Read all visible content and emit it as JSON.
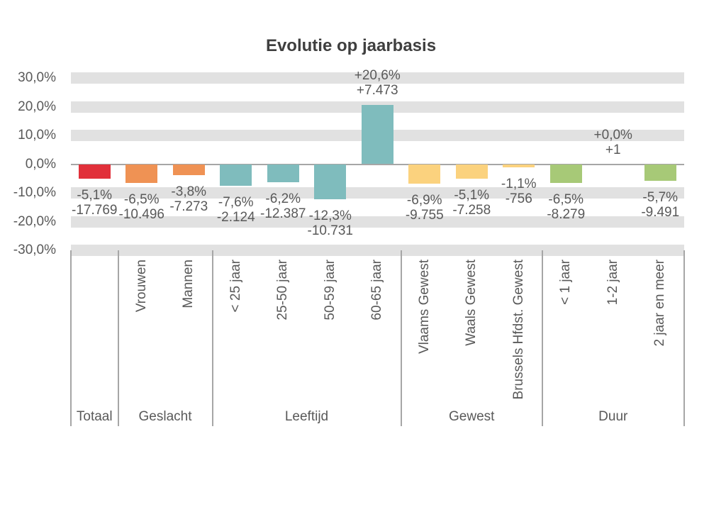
{
  "title": "Evolutie op jaarbasis",
  "chart_data": {
    "type": "bar",
    "title": "Evolutie op jaarbasis",
    "ylim": [
      -30,
      30
    ],
    "grid": "horizontal thick gray bands every 10%, no band at 0",
    "legend": "none",
    "y_ticks": [
      {
        "value": 30,
        "label": "30,0%"
      },
      {
        "value": 20,
        "label": "20,0%"
      },
      {
        "value": 10,
        "label": "10,0%"
      },
      {
        "value": 0,
        "label": "0,0%"
      },
      {
        "value": -10,
        "label": "-10,0%"
      },
      {
        "value": -20,
        "label": "-20,0%"
      },
      {
        "value": -30,
        "label": "-30,0%"
      }
    ],
    "categories": [
      {
        "label": "",
        "group": "Totaal",
        "value_pct": -5.1,
        "pct_label": "-5,1%",
        "abs_label": "-17.769",
        "color": "#e1303a"
      },
      {
        "label": "Vrouwen",
        "group": "Geslacht",
        "value_pct": -6.5,
        "pct_label": "-6,5%",
        "abs_label": "-10.496",
        "color": "#ef9254"
      },
      {
        "label": "Mannen",
        "group": "Geslacht",
        "value_pct": -3.8,
        "pct_label": "-3,8%",
        "abs_label": "-7.273",
        "color": "#ef9254"
      },
      {
        "label": "< 25 jaar",
        "group": "Leeftijd",
        "value_pct": -7.6,
        "pct_label": "-7,6%",
        "abs_label": "-2.124",
        "color": "#7fbcbd"
      },
      {
        "label": "25-50 jaar",
        "group": "Leeftijd",
        "value_pct": -6.2,
        "pct_label": "-6,2%",
        "abs_label": "-12.387",
        "color": "#7fbcbd"
      },
      {
        "label": "50-59 jaar",
        "group": "Leeftijd",
        "value_pct": -12.3,
        "pct_label": "-12,3%",
        "abs_label": "-10.731",
        "color": "#7fbcbd"
      },
      {
        "label": "60-65 jaar",
        "group": "Leeftijd",
        "value_pct": 20.6,
        "pct_label": "+20,6%",
        "abs_label": "+7.473",
        "color": "#7fbcbd"
      },
      {
        "label": "Vlaams Gewest",
        "group": "Gewest",
        "value_pct": -6.9,
        "pct_label": "-6,9%",
        "abs_label": "-9.755",
        "color": "#fbd27e"
      },
      {
        "label": "Waals Gewest",
        "group": "Gewest",
        "value_pct": -5.1,
        "pct_label": "-5,1%",
        "abs_label": "-7.258",
        "color": "#fbd27e"
      },
      {
        "label": "Brussels Hfdst. Gewest",
        "group": "Gewest",
        "value_pct": -1.1,
        "pct_label": "-1,1%",
        "abs_label": "-756",
        "color": "#fbd27e"
      },
      {
        "label": "< 1 jaar",
        "group": "Duur",
        "value_pct": -6.5,
        "pct_label": "-6,5%",
        "abs_label": "-8.279",
        "color": "#a7c977"
      },
      {
        "label": "1-2 jaar",
        "group": "Duur",
        "value_pct": 0.0,
        "pct_label": "+0,0%",
        "abs_label": "+1",
        "color": "#a7c977"
      },
      {
        "label": "2 jaar en meer",
        "group": "Duur",
        "value_pct": -5.7,
        "pct_label": "-5,7%",
        "abs_label": "-9.491",
        "color": "#a7c977"
      }
    ],
    "groups": [
      {
        "label": "Totaal",
        "count": 1
      },
      {
        "label": "Geslacht",
        "count": 2
      },
      {
        "label": "Leeftijd",
        "count": 4
      },
      {
        "label": "Gewest",
        "count": 3
      },
      {
        "label": "Duur",
        "count": 3
      }
    ],
    "colors": {
      "band": "#e1e1e1",
      "axis_line": "#a6a6a6",
      "text": "#595959",
      "title_text": "#3f3f3f"
    }
  }
}
